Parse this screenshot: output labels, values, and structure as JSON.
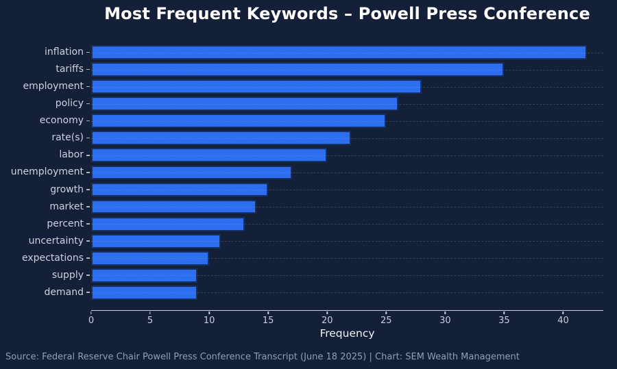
{
  "title": "Most Frequent Keywords – Powell Press Conference",
  "footer": "Source: Federal Reserve Chair Powell Press Conference Transcript (June 18 2025) | Chart: SEM Wealth Management",
  "chart_data": {
    "type": "bar",
    "orientation": "horizontal",
    "title": "Most Frequent Keywords – Powell Press Conference",
    "xlabel": "Frequency",
    "ylabel": "",
    "categories": [
      "inflation",
      "tariffs",
      "employment",
      "policy",
      "economy",
      "rate(s)",
      "labor",
      "unemployment",
      "growth",
      "market",
      "percent",
      "uncertainty",
      "expectations",
      "supply",
      "demand"
    ],
    "values": [
      42,
      35,
      28,
      26,
      25,
      22,
      20,
      17,
      15,
      14,
      13,
      11,
      10,
      9,
      9
    ],
    "xlim": [
      0,
      43.4
    ],
    "xticks": [
      0,
      5,
      10,
      15,
      20,
      25,
      30,
      35,
      40
    ],
    "grid": "horizontal-dashed",
    "legend": "none",
    "colors": {
      "background": "#141F38",
      "bar": "#2D6EF0",
      "bar_edge": "#143061",
      "grid": "rgba(148,163,188,0.25)",
      "axis": "#C8D0DC",
      "category_label": "#CBD3DE",
      "title": "#FFFFFF",
      "xlabel": "#F2F5F9",
      "footer": "#8EA0B5"
    }
  }
}
